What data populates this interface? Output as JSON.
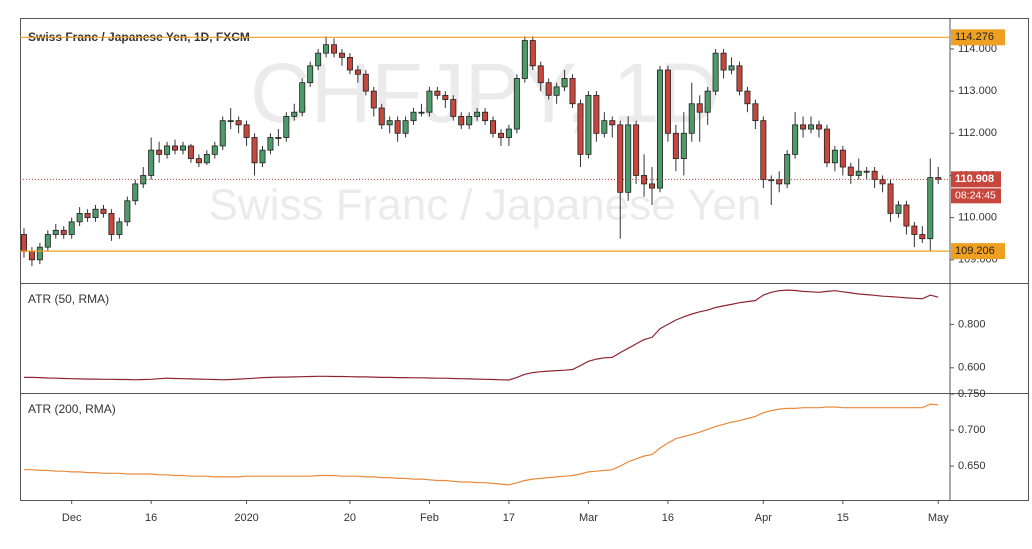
{
  "chart_data": [
    {
      "type": "candlestick",
      "title": "Swiss Franc / Japanese Yen, 1D, FXCM",
      "watermark": [
        "CHFJPY, 1D",
        "Swiss Franc / Japanese Yen"
      ],
      "up_color": "#4f9a6b",
      "down_color": "#c8473d",
      "grid": false,
      "categories": [
        null,
        null,
        null,
        null,
        null,
        null,
        "Dec",
        null,
        null,
        null,
        null,
        null,
        null,
        null,
        null,
        null,
        "16",
        null,
        null,
        null,
        null,
        null,
        null,
        null,
        null,
        null,
        null,
        null,
        "2020",
        null,
        null,
        null,
        null,
        null,
        null,
        null,
        null,
        null,
        null,
        null,
        null,
        "20",
        null,
        null,
        null,
        null,
        null,
        null,
        null,
        null,
        null,
        "Feb",
        null,
        null,
        null,
        null,
        null,
        null,
        null,
        null,
        null,
        "17",
        null,
        null,
        null,
        null,
        null,
        null,
        null,
        null,
        null,
        "Mar",
        null,
        null,
        null,
        null,
        null,
        null,
        null,
        null,
        null,
        "16",
        null,
        null,
        null,
        null,
        null,
        null,
        null,
        null,
        null,
        null,
        null,
        "Apr",
        null,
        null,
        null,
        null,
        null,
        null,
        null,
        null,
        null,
        "15",
        null,
        null,
        null,
        null,
        null,
        null,
        null,
        null,
        null,
        null,
        null,
        "May"
      ],
      "open": [
        109.6,
        109.2,
        109.0,
        109.3,
        109.6,
        109.7,
        109.6,
        109.9,
        110.1,
        110.0,
        110.2,
        110.1,
        109.6,
        109.9,
        110.4,
        110.8,
        111.0,
        111.6,
        111.5,
        111.7,
        111.6,
        111.7,
        111.4,
        111.3,
        111.5,
        111.7,
        112.3,
        112.3,
        112.2,
        111.9,
        111.3,
        111.6,
        111.9,
        111.9,
        112.4,
        112.5,
        113.2,
        113.6,
        113.9,
        114.1,
        113.9,
        113.8,
        113.5,
        113.4,
        113.0,
        112.6,
        112.2,
        112.3,
        112.0,
        112.3,
        112.5,
        112.5,
        113.0,
        112.9,
        112.8,
        112.4,
        112.2,
        112.4,
        112.5,
        112.3,
        112.0,
        111.9,
        112.1,
        113.3,
        114.2,
        113.6,
        113.2,
        112.9,
        113.1,
        113.3,
        112.7,
        111.5,
        112.9,
        112.0,
        112.3,
        112.2,
        110.6,
        112.2,
        111.0,
        110.8,
        110.7,
        113.5,
        112.0,
        111.4,
        112.0,
        112.7,
        112.5,
        113.0,
        113.9,
        113.5,
        113.6,
        113.0,
        112.7,
        112.3,
        110.9,
        110.9,
        110.8,
        111.5,
        112.2,
        112.1,
        112.2,
        112.1,
        111.3,
        111.6,
        111.2,
        111.0,
        111.1,
        111.1,
        110.9,
        110.8,
        110.1,
        110.3,
        109.8,
        109.6,
        109.5,
        110.95
      ],
      "high": [
        109.75,
        109.3,
        109.4,
        109.7,
        109.85,
        109.8,
        110.0,
        110.25,
        110.2,
        110.3,
        110.3,
        110.2,
        110.0,
        110.5,
        110.9,
        111.2,
        111.9,
        111.8,
        111.8,
        111.85,
        111.8,
        111.75,
        111.5,
        111.6,
        111.8,
        112.4,
        112.6,
        112.4,
        112.3,
        112.0,
        111.7,
        112.0,
        112.1,
        112.5,
        112.7,
        113.3,
        113.7,
        114.0,
        114.3,
        114.25,
        114.0,
        113.9,
        113.6,
        113.5,
        113.1,
        112.7,
        112.4,
        112.4,
        112.4,
        112.6,
        112.7,
        113.1,
        113.1,
        113.0,
        112.9,
        112.5,
        112.5,
        112.6,
        112.6,
        112.4,
        112.1,
        112.2,
        113.4,
        114.3,
        114.3,
        113.7,
        113.3,
        113.2,
        113.5,
        113.4,
        112.8,
        113.0,
        113.0,
        112.5,
        112.4,
        112.3,
        112.4,
        112.3,
        111.5,
        111.2,
        113.6,
        113.6,
        112.2,
        112.5,
        113.2,
        112.9,
        113.1,
        114.0,
        114.0,
        113.8,
        113.7,
        113.1,
        112.8,
        112.4,
        111.0,
        111.1,
        111.6,
        112.5,
        112.4,
        112.4,
        112.3,
        112.2,
        111.7,
        111.7,
        111.3,
        111.4,
        111.2,
        111.2,
        111.0,
        110.9,
        110.4,
        110.4,
        109.9,
        109.8,
        111.4,
        111.2
      ],
      "low": [
        109.05,
        108.85,
        108.9,
        109.2,
        109.5,
        109.5,
        109.5,
        109.8,
        109.9,
        109.9,
        110.0,
        109.45,
        109.5,
        109.8,
        110.3,
        110.7,
        110.9,
        111.3,
        111.4,
        111.5,
        111.5,
        111.3,
        111.2,
        111.25,
        111.4,
        111.6,
        112.1,
        112.0,
        111.7,
        111.0,
        111.2,
        111.5,
        111.7,
        111.8,
        112.3,
        112.4,
        113.1,
        113.5,
        113.8,
        113.8,
        113.6,
        113.4,
        113.2,
        112.9,
        112.4,
        112.1,
        112.0,
        111.8,
        111.9,
        112.2,
        112.4,
        112.4,
        112.8,
        112.6,
        112.3,
        112.1,
        112.1,
        112.3,
        112.2,
        111.9,
        111.7,
        111.7,
        112.0,
        113.2,
        113.5,
        113.0,
        112.8,
        112.7,
        113.0,
        112.6,
        111.2,
        111.4,
        111.8,
        111.9,
        111.9,
        109.5,
        110.4,
        110.8,
        110.5,
        110.3,
        110.6,
        111.8,
        111.1,
        111.0,
        111.8,
        111.8,
        112.2,
        112.9,
        113.3,
        113.4,
        112.9,
        112.5,
        112.1,
        110.7,
        110.3,
        110.6,
        110.7,
        111.4,
        111.9,
        112.0,
        111.9,
        111.2,
        111.1,
        111.0,
        110.8,
        110.9,
        110.9,
        110.7,
        110.6,
        109.9,
        110.0,
        109.6,
        109.3,
        109.4,
        109.2,
        110.8
      ],
      "close": [
        109.2,
        109.0,
        109.3,
        109.6,
        109.7,
        109.6,
        109.9,
        110.1,
        110.0,
        110.2,
        110.1,
        109.6,
        109.9,
        110.4,
        110.8,
        111.0,
        111.6,
        111.5,
        111.7,
        111.6,
        111.7,
        111.4,
        111.3,
        111.5,
        111.7,
        112.3,
        112.3,
        112.2,
        111.9,
        111.3,
        111.6,
        111.9,
        111.9,
        112.4,
        112.5,
        113.2,
        113.6,
        113.9,
        114.1,
        113.9,
        113.8,
        113.5,
        113.4,
        113.0,
        112.6,
        112.2,
        112.3,
        112.0,
        112.3,
        112.5,
        112.5,
        113.0,
        112.9,
        112.8,
        112.4,
        112.2,
        112.4,
        112.5,
        112.3,
        112.0,
        111.9,
        112.1,
        113.3,
        114.2,
        113.6,
        113.2,
        112.9,
        113.1,
        113.3,
        112.7,
        111.5,
        112.9,
        112.0,
        112.3,
        112.2,
        110.6,
        112.2,
        111.0,
        110.8,
        110.7,
        113.5,
        112.0,
        111.4,
        112.0,
        112.7,
        112.5,
        113.0,
        113.9,
        113.5,
        113.6,
        113.0,
        112.7,
        112.3,
        110.9,
        110.9,
        110.8,
        111.5,
        112.2,
        112.1,
        112.2,
        112.1,
        111.3,
        111.6,
        111.2,
        111.0,
        111.1,
        111.1,
        110.9,
        110.8,
        110.1,
        110.3,
        109.8,
        109.6,
        109.5,
        110.95,
        110.908
      ],
      "ylim": [
        108.45,
        114.71
      ],
      "yticks": [
        {
          "value": 109,
          "label": "109.000"
        },
        {
          "value": 110,
          "label": "110.000"
        },
        {
          "value": 111,
          "label": "111.000"
        },
        {
          "value": 112,
          "label": "112.000"
        },
        {
          "value": 113,
          "label": "113.000"
        },
        {
          "value": 114,
          "label": "114.000"
        }
      ],
      "hlines": [
        {
          "value": 114.276,
          "color": "#f0a020"
        },
        {
          "value": 109.206,
          "color": "#f0a020"
        }
      ],
      "last_price": {
        "value": 110.908,
        "countdown": "08:24:45",
        "color": "#c8473d"
      }
    },
    {
      "type": "line",
      "title": "ATR (50, RMA)",
      "color": "#8e2433",
      "values": [
        0.556,
        0.556,
        0.555,
        0.553,
        0.552,
        0.551,
        0.55,
        0.549,
        0.548,
        0.548,
        0.547,
        0.547,
        0.546,
        0.546,
        0.545,
        0.546,
        0.547,
        0.55,
        0.552,
        0.551,
        0.55,
        0.549,
        0.548,
        0.547,
        0.546,
        0.545,
        0.546,
        0.548,
        0.55,
        0.552,
        0.555,
        0.556,
        0.557,
        0.557,
        0.558,
        0.559,
        0.56,
        0.561,
        0.561,
        0.56,
        0.56,
        0.559,
        0.558,
        0.558,
        0.557,
        0.556,
        0.556,
        0.555,
        0.555,
        0.554,
        0.554,
        0.553,
        0.552,
        0.552,
        0.551,
        0.55,
        0.549,
        0.548,
        0.547,
        0.546,
        0.545,
        0.544,
        0.556,
        0.57,
        0.578,
        0.582,
        0.585,
        0.587,
        0.589,
        0.592,
        0.61,
        0.63,
        0.64,
        0.646,
        0.648,
        0.67,
        0.69,
        0.71,
        0.73,
        0.74,
        0.78,
        0.8,
        0.82,
        0.835,
        0.848,
        0.858,
        0.866,
        0.878,
        0.885,
        0.892,
        0.9,
        0.905,
        0.91,
        0.935,
        0.948,
        0.955,
        0.958,
        0.956,
        0.952,
        0.95,
        0.948,
        0.952,
        0.955,
        0.95,
        0.945,
        0.94,
        0.937,
        0.934,
        0.93,
        0.928,
        0.925,
        0.922,
        0.92,
        0.918,
        0.935,
        0.925
      ],
      "ylim": [
        0.484,
        0.986
      ],
      "yticks": [
        {
          "value": 0.6,
          "label": "0.600"
        },
        {
          "value": 0.8,
          "label": "0.800"
        }
      ]
    },
    {
      "type": "line",
      "title": "ATR (200, RMA)",
      "color": "#e98a3c",
      "values": [
        0.645,
        0.645,
        0.644,
        0.644,
        0.643,
        0.643,
        0.642,
        0.642,
        0.641,
        0.641,
        0.64,
        0.64,
        0.64,
        0.639,
        0.639,
        0.639,
        0.639,
        0.638,
        0.638,
        0.637,
        0.637,
        0.636,
        0.636,
        0.636,
        0.635,
        0.635,
        0.635,
        0.635,
        0.636,
        0.636,
        0.636,
        0.636,
        0.636,
        0.636,
        0.636,
        0.636,
        0.636,
        0.637,
        0.637,
        0.637,
        0.636,
        0.636,
        0.636,
        0.635,
        0.635,
        0.634,
        0.634,
        0.633,
        0.633,
        0.632,
        0.632,
        0.631,
        0.63,
        0.63,
        0.629,
        0.628,
        0.628,
        0.627,
        0.627,
        0.626,
        0.625,
        0.624,
        0.627,
        0.63,
        0.632,
        0.633,
        0.634,
        0.635,
        0.636,
        0.637,
        0.639,
        0.642,
        0.643,
        0.644,
        0.645,
        0.65,
        0.656,
        0.66,
        0.664,
        0.666,
        0.675,
        0.682,
        0.688,
        0.691,
        0.694,
        0.697,
        0.701,
        0.705,
        0.708,
        0.711,
        0.713,
        0.716,
        0.719,
        0.724,
        0.727,
        0.729,
        0.73,
        0.73,
        0.731,
        0.731,
        0.731,
        0.732,
        0.732,
        0.731,
        0.731,
        0.731,
        0.731,
        0.731,
        0.731,
        0.731,
        0.731,
        0.731,
        0.731,
        0.731,
        0.736,
        0.735
      ],
      "ylim": [
        0.603,
        0.75
      ],
      "yticks": [
        {
          "value": 0.65,
          "label": "0.650"
        },
        {
          "value": 0.7,
          "label": "0.700"
        },
        {
          "value": 0.75,
          "label": "0.750"
        }
      ]
    }
  ]
}
